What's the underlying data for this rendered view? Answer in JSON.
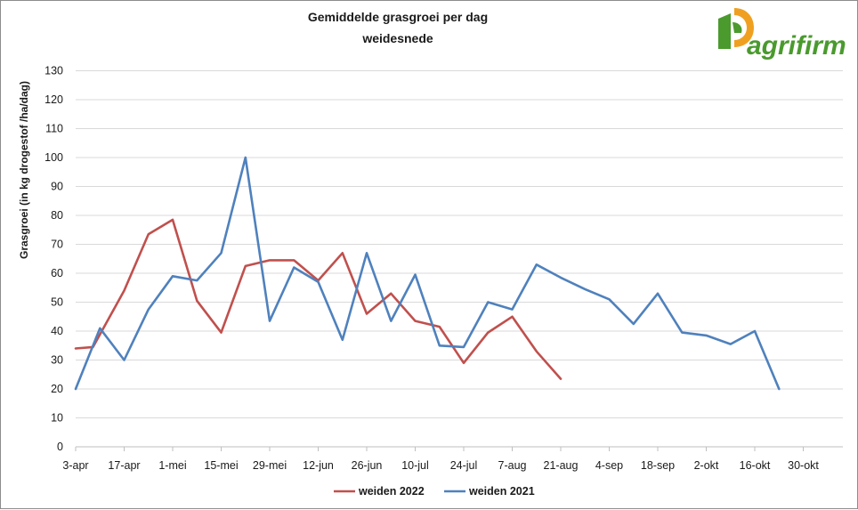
{
  "logo": {
    "text": "agrifirm",
    "colors": {
      "green": "#4a9a2e",
      "orange": "#f0a020",
      "dark_green": "#2e7d32"
    },
    "icon": "agrifirm-mark-icon"
  },
  "chart_data": {
    "type": "line",
    "title": [
      "Gemiddelde grasgroei per dag",
      "weidesnede"
    ],
    "ylabel": "Grasgroei (in kg drogestof /ha/dag)",
    "xlabel": "",
    "ylim": [
      0,
      130
    ],
    "yticks": [
      0,
      10,
      20,
      30,
      40,
      50,
      60,
      70,
      80,
      90,
      100,
      110,
      120,
      130
    ],
    "x_categories": [
      "3-apr",
      "17-apr",
      "1-mei",
      "15-mei",
      "29-mei",
      "12-jun",
      "26-jun",
      "10-jul",
      "24-jul",
      "7-aug",
      "21-aug",
      "4-sep",
      "18-sep",
      "2-okt",
      "16-okt",
      "30-okt"
    ],
    "x_unit": "days since 3-apr, 14 days per labelled tick",
    "grid": true,
    "legend_position": "bottom",
    "series": [
      {
        "name": "weiden 2022",
        "color": "#c0504d",
        "x_day": [
          0,
          5,
          14,
          21,
          28,
          35,
          42,
          49,
          56,
          63,
          70,
          77,
          84,
          91,
          98,
          105,
          112,
          119,
          126,
          133,
          140
        ],
        "values": [
          34,
          34.5,
          54,
          73.5,
          78.5,
          50.5,
          39.5,
          62.5,
          64.5,
          64.5,
          57.5,
          67,
          46,
          53,
          43.5,
          41.5,
          29,
          39.5,
          45,
          33,
          23.5
        ]
      },
      {
        "name": "weiden 2021",
        "color": "#4f81bd",
        "x_day": [
          0,
          7,
          14,
          21,
          28,
          35,
          42,
          49,
          56,
          63,
          70,
          77,
          84,
          91,
          98,
          105,
          112,
          119,
          126,
          133,
          140,
          147,
          154,
          161,
          168,
          175,
          182,
          189,
          196,
          203
        ],
        "values": [
          20,
          41,
          30,
          47.5,
          59,
          57.5,
          67,
          100,
          43.5,
          62,
          57,
          37,
          67,
          43.5,
          59.5,
          35,
          34.5,
          50,
          47.5,
          63,
          58.5,
          54.5,
          51,
          42.5,
          53,
          39.5,
          38.5,
          35.5,
          40,
          20
        ]
      }
    ]
  }
}
